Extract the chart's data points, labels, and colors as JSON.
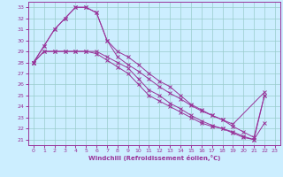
{
  "title": "",
  "xlabel": "Windchill (Refroidissement éolien,°C)",
  "xlim": [
    -0.5,
    23.5
  ],
  "ylim": [
    20.5,
    33.5
  ],
  "xticks": [
    0,
    1,
    2,
    3,
    4,
    5,
    6,
    7,
    8,
    9,
    10,
    11,
    12,
    13,
    14,
    15,
    16,
    17,
    18,
    19,
    20,
    21,
    22,
    23
  ],
  "yticks": [
    21,
    22,
    23,
    24,
    25,
    26,
    27,
    28,
    29,
    30,
    31,
    32,
    33
  ],
  "bg_color": "#cceeff",
  "line_color": "#993399",
  "grid_color": "#99cccc",
  "line1_x": [
    0,
    1,
    2,
    3,
    4,
    5,
    6,
    7,
    8,
    9,
    10,
    11,
    12,
    13,
    14,
    15,
    16,
    17,
    18,
    19,
    22
  ],
  "line1_y": [
    28.0,
    29.5,
    31.0,
    32.0,
    33.0,
    33.0,
    32.5,
    30.0,
    28.5,
    27.8,
    27.2,
    26.5,
    25.8,
    25.2,
    24.7,
    24.1,
    23.6,
    23.2,
    22.8,
    22.4,
    25.3
  ],
  "line2_x": [
    0,
    1,
    2,
    3,
    4,
    5,
    6,
    7,
    8,
    9,
    10,
    11,
    12,
    13,
    14,
    15,
    16,
    17,
    18,
    19,
    20,
    21,
    22
  ],
  "line2_y": [
    28.0,
    29.0,
    29.0,
    29.0,
    29.0,
    29.0,
    29.0,
    28.5,
    28.0,
    27.5,
    26.5,
    25.5,
    25.0,
    24.3,
    23.8,
    23.2,
    22.7,
    22.3,
    22.0,
    21.6,
    21.2,
    21.0,
    22.5
  ],
  "line3_x": [
    0,
    1,
    2,
    3,
    4,
    5,
    6,
    7,
    8,
    9,
    10,
    11,
    12,
    13,
    14,
    15,
    16,
    17,
    18,
    19,
    20,
    21,
    22
  ],
  "line3_y": [
    28.0,
    29.0,
    29.0,
    29.0,
    29.0,
    29.0,
    28.8,
    28.2,
    27.6,
    27.0,
    26.0,
    25.0,
    24.5,
    24.0,
    23.5,
    23.0,
    22.5,
    22.2,
    22.0,
    21.7,
    21.3,
    21.0,
    25.0
  ],
  "line4_x": [
    0,
    1,
    2,
    3,
    4,
    5,
    6,
    7,
    8,
    9,
    10,
    11,
    12,
    13,
    14,
    15,
    16,
    17,
    18,
    19,
    20,
    21,
    22
  ],
  "line4_y": [
    28.0,
    29.5,
    31.0,
    32.0,
    33.0,
    33.0,
    32.5,
    30.0,
    29.0,
    28.5,
    27.8,
    27.0,
    26.3,
    25.8,
    25.0,
    24.2,
    23.7,
    23.2,
    22.8,
    22.2,
    21.7,
    21.2,
    25.0
  ]
}
